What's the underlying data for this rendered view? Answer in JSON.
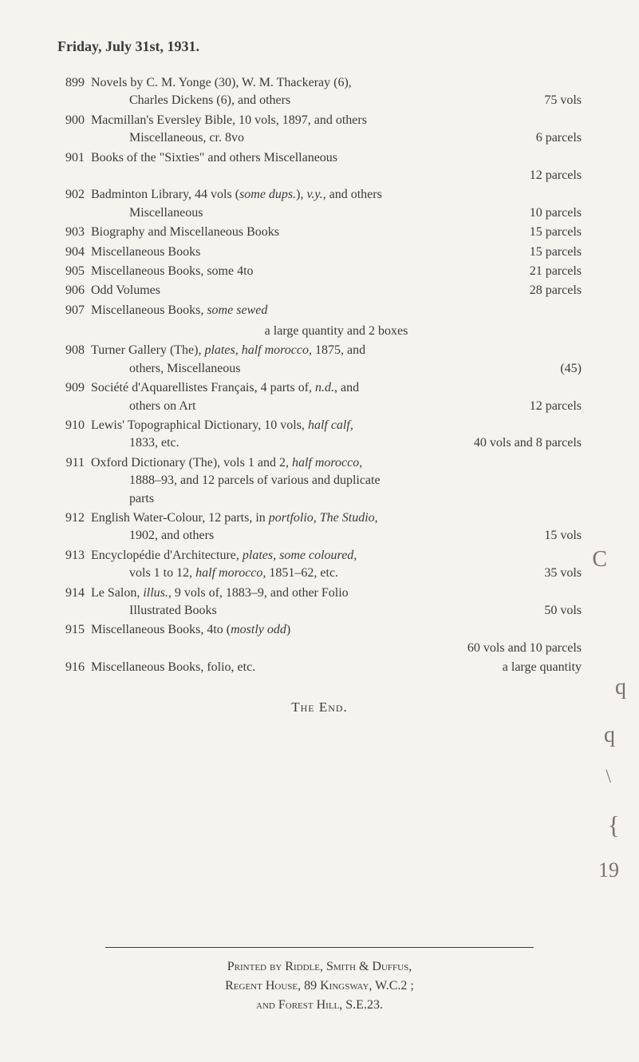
{
  "page_header": "Friday, July 31st, 1931.",
  "entries": [
    {
      "num": "899",
      "lines": [
        {
          "text": "Novels by C. M. Yonge (30), W. M. Thackeray (6),"
        },
        {
          "text": "Charles Dickens (6), and others",
          "right": "75 vols",
          "indent": true
        }
      ]
    },
    {
      "num": "900",
      "lines": [
        {
          "text": "Macmillan's Eversley Bible, 10 vols, 1897, and others"
        },
        {
          "text": "Miscellaneous, cr. 8vo",
          "right": "6 parcels",
          "indent": true
        }
      ]
    },
    {
      "num": "901",
      "lines": [
        {
          "text": "Books of the \"Sixties\" and others Miscellaneous"
        },
        {
          "text": "",
          "right": "12 parcels"
        }
      ]
    },
    {
      "num": "902",
      "lines": [
        {
          "html": "Badminton Library, 44 vols (<span class='italic'>some dups.</span>), <span class='italic'>v.y.</span>, and others"
        },
        {
          "text": "Miscellaneous",
          "right": "10 parcels",
          "indent": true
        }
      ]
    },
    {
      "num": "903",
      "lines": [
        {
          "text": "Biography and Miscellaneous Books",
          "right": "15 parcels"
        }
      ]
    },
    {
      "num": "904",
      "lines": [
        {
          "text": "Miscellaneous Books",
          "right": "15 parcels"
        }
      ]
    },
    {
      "num": "905",
      "lines": [
        {
          "text": "Miscellaneous Books, some 4to",
          "right": "21 parcels"
        }
      ]
    },
    {
      "num": "906",
      "lines": [
        {
          "text": "Odd Volumes",
          "right": "28 parcels"
        }
      ]
    },
    {
      "num": "907",
      "lines": [
        {
          "html": "Miscellaneous Books, <span class='italic'>some sewed</span>"
        },
        {
          "text": "a large quantity and 2 boxes",
          "center": true
        }
      ]
    },
    {
      "num": "908",
      "lines": [
        {
          "html": "Turner Gallery (The), <span class='italic'>plates, half morocco,</span> 1875, and"
        },
        {
          "text": "others, Miscellaneous",
          "right": "(45)",
          "indent": true
        }
      ]
    },
    {
      "num": "909",
      "lines": [
        {
          "html": "Société d'Aquarellistes Français, 4 parts of, <span class='italic'>n.d.</span>, and"
        },
        {
          "text": "others on Art",
          "right": "12 parcels",
          "indent": true
        }
      ]
    },
    {
      "num": "910",
      "lines": [
        {
          "html": "Lewis' Topographical Dictionary, 10 vols, <span class='italic'>half calf,</span>"
        },
        {
          "text": "1833, etc.",
          "right": "40 vols and 8 parcels",
          "indent": true
        }
      ]
    },
    {
      "num": "911",
      "lines": [
        {
          "html": "Oxford Dictionary (The), vols 1 and 2, <span class='italic'>half morocco,</span>"
        },
        {
          "text": "1888–93, and 12 parcels of various and duplicate",
          "indent": true
        },
        {
          "text": "parts",
          "indent": true
        }
      ]
    },
    {
      "num": "912",
      "lines": [
        {
          "html": "English Water-Colour, 12 parts, in <span class='italic'>portfolio, The Studio,</span>"
        },
        {
          "text": "1902, and others",
          "right": "15 vols",
          "indent": true
        }
      ]
    },
    {
      "num": "913",
      "lines": [
        {
          "html": "Encyclopédie d'Architecture, <span class='italic'>plates, some coloured,</span>"
        },
        {
          "html": "vols 1 to 12, <span class='italic'>half morocco,</span> 1851–62, etc.",
          "right": "35 vols",
          "indent": true
        }
      ]
    },
    {
      "num": "914",
      "lines": [
        {
          "html": "Le Salon, <span class='italic'>illus.</span>, 9 vols of, 1883–9, and other Folio"
        },
        {
          "text": "Illustrated Books",
          "right": "50 vols",
          "indent": true
        }
      ]
    },
    {
      "num": "915",
      "lines": [
        {
          "html": "Miscellaneous Books, 4to (<span class='italic'>mostly odd</span>)"
        },
        {
          "text": "",
          "right": "60 vols and 10 parcels"
        }
      ]
    },
    {
      "num": "916",
      "lines": [
        {
          "text": "Miscellaneous Books, folio, etc.",
          "right": "a large quantity"
        }
      ]
    }
  ],
  "end_label": "The End.",
  "footer": {
    "line1": "Printed by Riddle, Smith & Duffus,",
    "line2": "Regent House, 89 Kingsway, W.C.2 ;",
    "line3": "and Forest Hill, S.E.23."
  },
  "marginalia": {
    "c": "C",
    "q1": "q",
    "q2": "q",
    "backslash": "\\",
    "bracket": "{",
    "num": "19"
  },
  "colors": {
    "background": "#f5f3ee",
    "text": "#3a3a3a",
    "marginalia": "#7a7468"
  },
  "typography": {
    "body_fontsize": 16,
    "header_fontsize": 18,
    "font_family": "Georgia, Times New Roman, serif"
  }
}
